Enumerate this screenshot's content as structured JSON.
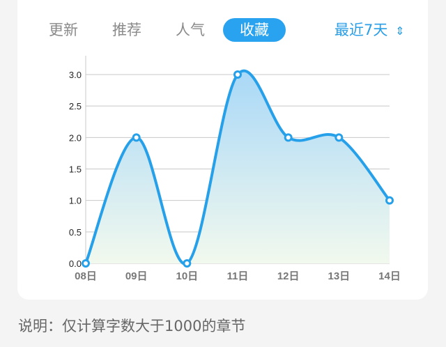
{
  "tabs": [
    {
      "label": "更新"
    },
    {
      "label": "推荐"
    },
    {
      "label": "人气"
    },
    {
      "label": "收藏",
      "active": true
    }
  ],
  "range_select": {
    "value": "最近7天",
    "icon": "chevron-up-down-icon"
  },
  "note": "说明：仅计算字数大于1000的章节",
  "colors": {
    "accent": "#29a3ef",
    "line": "#27a0ea"
  },
  "chart_data": {
    "type": "area",
    "categories": [
      "08日",
      "09日",
      "10日",
      "11日",
      "12日",
      "13日",
      "14日"
    ],
    "values": [
      0,
      2,
      0,
      3,
      2,
      2,
      1
    ],
    "yticks": [
      "0.0",
      "0.5",
      "1.0",
      "1.5",
      "2.0",
      "2.5",
      "3.0"
    ],
    "ylim": [
      0,
      3
    ],
    "grid": true,
    "smooth": true
  }
}
